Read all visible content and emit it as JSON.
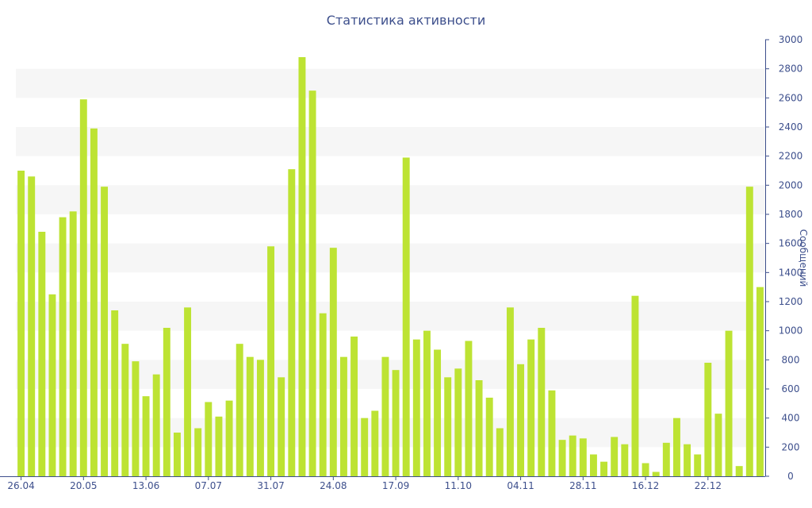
{
  "chart_data": {
    "type": "bar",
    "title": "Статистика активности",
    "xlabel": "",
    "ylabel": "Сообщений",
    "y_axis_side": "right",
    "ylim": [
      0,
      3000
    ],
    "y_ticks": [
      0,
      200,
      400,
      600,
      800,
      1000,
      1200,
      1400,
      1600,
      1800,
      2000,
      2200,
      2400,
      2600,
      2800,
      3000
    ],
    "grid": "alternating horizontal bands",
    "legend": "none",
    "bar_color": "#bde333",
    "x_tick_labels": [
      {
        "index": 0,
        "label": "26.04"
      },
      {
        "index": 6,
        "label": "20.05"
      },
      {
        "index": 12,
        "label": "13.06"
      },
      {
        "index": 18,
        "label": "07.07"
      },
      {
        "index": 24,
        "label": "31.07"
      },
      {
        "index": 30,
        "label": "24.08"
      },
      {
        "index": 36,
        "label": "17.09"
      },
      {
        "index": 42,
        "label": "11.10"
      },
      {
        "index": 48,
        "label": "04.11"
      },
      {
        "index": 54,
        "label": "28.11"
      },
      {
        "index": 60,
        "label": "16.12"
      },
      {
        "index": 66,
        "label": "22.12"
      }
    ],
    "values": [
      2100,
      2060,
      1680,
      1250,
      1780,
      1820,
      2590,
      2390,
      1990,
      1140,
      910,
      790,
      550,
      700,
      1020,
      300,
      1160,
      330,
      510,
      410,
      520,
      910,
      820,
      800,
      1580,
      680,
      2110,
      2880,
      2650,
      1120,
      1570,
      820,
      960,
      400,
      450,
      820,
      730,
      2190,
      940,
      1000,
      870,
      680,
      740,
      930,
      660,
      540,
      330,
      1160,
      770,
      940,
      1020,
      590,
      250,
      280,
      260,
      150,
      100,
      270,
      220,
      1240,
      90,
      30,
      230,
      400,
      220,
      150,
      780,
      430,
      1000,
      70,
      1990,
      1300
    ]
  }
}
